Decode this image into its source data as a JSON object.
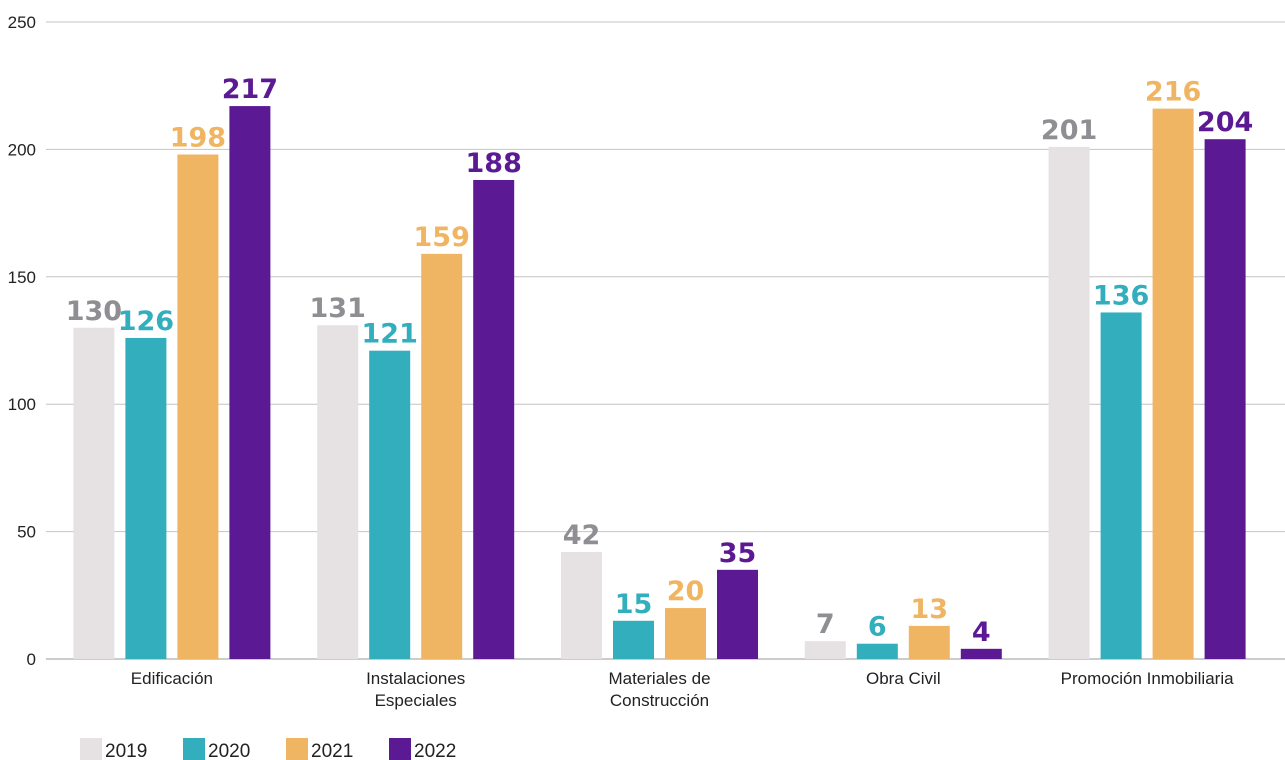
{
  "chart_data": {
    "type": "bar",
    "categories": [
      [
        "Edificación"
      ],
      [
        "Instalaciones",
        "Especiales"
      ],
      [
        "Materiales de",
        "Construcción"
      ],
      [
        "Obra Civil"
      ],
      [
        "Promoción Inmobiliaria"
      ]
    ],
    "series": [
      {
        "name": "2019",
        "color": "#e6e2e3",
        "label_color": "#8e8e93",
        "values": [
          130,
          131,
          42,
          7,
          201
        ]
      },
      {
        "name": "2020",
        "color": "#32aebd",
        "label_color": "#32aebd",
        "values": [
          126,
          121,
          15,
          6,
          136
        ]
      },
      {
        "name": "2021",
        "color": "#f0b563",
        "label_color": "#f0b563",
        "values": [
          198,
          159,
          20,
          13,
          216
        ]
      },
      {
        "name": "2022",
        "color": "#5b1a93",
        "label_color": "#5b1a93",
        "values": [
          217,
          188,
          35,
          4,
          204
        ]
      }
    ],
    "ylim": [
      0,
      250
    ],
    "yticks": [
      0,
      50,
      100,
      150,
      200,
      250
    ],
    "grid": true,
    "legend_position": "bottom-left",
    "title": "",
    "xlabel": "",
    "ylabel": ""
  }
}
